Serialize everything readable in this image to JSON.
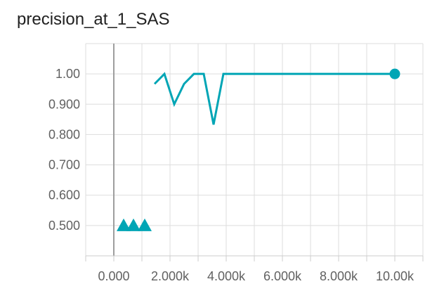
{
  "chart_data": {
    "type": "line",
    "title": "precision_at_1_SAS",
    "xlabel": "",
    "ylabel": "",
    "xlim": [
      -1000,
      11000
    ],
    "ylim": [
      0.4,
      1.1
    ],
    "x_ticks": [
      0,
      2000,
      4000,
      6000,
      8000,
      10000
    ],
    "x_tick_labels": [
      "0.000",
      "2.000k",
      "4.000k",
      "6.000k",
      "8.000k",
      "10.00k"
    ],
    "y_ticks": [
      0.5,
      0.6,
      0.7,
      0.8,
      0.9,
      1.0
    ],
    "y_tick_labels": [
      "0.500",
      "0.600",
      "0.700",
      "0.800",
      "0.900",
      "1.00"
    ],
    "grid": true,
    "color": "#00a5b5",
    "series": [
      {
        "name": "",
        "marker": "triangle",
        "line": false,
        "x": [
          350,
          700,
          1100
        ],
        "y": [
          0.5,
          0.5,
          0.5
        ]
      },
      {
        "name": "",
        "marker": "none",
        "line": true,
        "x": [
          1450,
          1800,
          2150,
          2500,
          2850,
          3200,
          3550,
          3900,
          10000
        ],
        "y": [
          0.967,
          1.0,
          0.9,
          0.967,
          1.0,
          1.0,
          0.833,
          1.0,
          1.0
        ]
      },
      {
        "name": "",
        "marker": "circle",
        "line": false,
        "x": [
          10000
        ],
        "y": [
          1.0
        ]
      }
    ]
  }
}
